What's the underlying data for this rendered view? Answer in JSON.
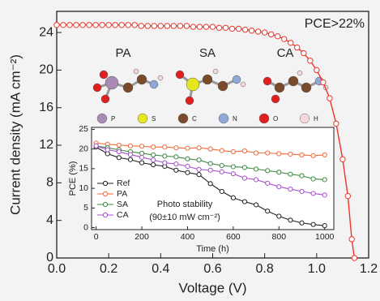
{
  "chart_data": [
    {
      "type": "line",
      "xlabel": "Voltage (V)",
      "ylabel": "Current density (mA cm⁻²)",
      "annotation": "PCE>22%",
      "x": [
        0,
        0.025,
        0.05,
        0.075,
        0.1,
        0.125,
        0.15,
        0.175,
        0.2,
        0.225,
        0.25,
        0.275,
        0.3,
        0.325,
        0.35,
        0.375,
        0.4,
        0.425,
        0.45,
        0.475,
        0.5,
        0.525,
        0.55,
        0.575,
        0.6,
        0.625,
        0.65,
        0.675,
        0.7,
        0.725,
        0.75,
        0.775,
        0.8,
        0.825,
        0.85,
        0.875,
        0.9,
        0.925,
        0.95,
        0.975,
        1.0,
        1.025,
        1.05,
        1.075,
        1.1,
        1.12,
        1.135,
        1.145
      ],
      "values": [
        24.8,
        24.8,
        24.8,
        24.8,
        24.8,
        24.8,
        24.8,
        24.8,
        24.8,
        24.8,
        24.8,
        24.8,
        24.8,
        24.7,
        24.7,
        24.7,
        24.7,
        24.7,
        24.7,
        24.7,
        24.7,
        24.6,
        24.6,
        24.6,
        24.6,
        24.5,
        24.5,
        24.4,
        24.4,
        24.3,
        24.2,
        24.1,
        24.0,
        23.8,
        23.6,
        23.3,
        22.9,
        22.4,
        21.8,
        21.0,
        20.0,
        18.7,
        17.0,
        14.3,
        10.5,
        6.6,
        2.0,
        0
      ],
      "color": "#f0342a",
      "xlim": [
        0,
        1.2
      ],
      "ylim": [
        0,
        26.25
      ],
      "xticks": [
        {
          "value": 0,
          "label": "0.0"
        },
        0.2,
        0.4,
        0.6,
        0.8,
        {
          "value": 1,
          "label": "1.0"
        },
        1.2
      ],
      "yticks": [
        0,
        4,
        8,
        12,
        16,
        20,
        24
      ],
      "molecules": [
        "PA",
        "SA",
        "CA"
      ],
      "atoms": [
        {
          "symbol": "P",
          "color": "#a98bb5"
        },
        {
          "symbol": "S",
          "color": "#e6e61e"
        },
        {
          "symbol": "C",
          "color": "#7a4a2a"
        },
        {
          "symbol": "N",
          "color": "#8fa8d8"
        },
        {
          "symbol": "O",
          "color": "#e02020"
        },
        {
          "symbol": "H",
          "color": "#f2d8dc"
        }
      ]
    },
    {
      "type": "line",
      "xlabel": "Time (h)",
      "ylabel": "PCE (%)",
      "annotation": [
        "Photo stability",
        "(90±10 mW cm⁻²)"
      ],
      "x": [
        0,
        50,
        100,
        150,
        200,
        250,
        300,
        350,
        400,
        450,
        500,
        550,
        600,
        650,
        700,
        750,
        800,
        850,
        900,
        950,
        1000
      ],
      "series": [
        {
          "name": "Ref",
          "color": "#222222",
          "values": [
            20.5,
            18.8,
            17.8,
            17.3,
            16.5,
            16.0,
            15.6,
            14.6,
            14.0,
            13.5,
            11.2,
            9.2,
            7.6,
            6.6,
            5.8,
            4.2,
            2.9,
            1.9,
            1.2,
            0.8,
            0.5
          ]
        },
        {
          "name": "PA",
          "color": "#f26a3c",
          "values": [
            21.5,
            21.2,
            21.0,
            20.8,
            20.7,
            20.5,
            20.5,
            20.3,
            20.2,
            20.3,
            20.0,
            19.6,
            19.3,
            19.5,
            19.0,
            19.0,
            18.8,
            18.7,
            18.5,
            18.3,
            18.5
          ]
        },
        {
          "name": "SA",
          "color": "#3d8b45",
          "values": [
            20.8,
            20.3,
            19.8,
            19.3,
            18.9,
            18.5,
            18.2,
            18.0,
            17.5,
            17.2,
            16.3,
            15.8,
            15.5,
            15.3,
            14.9,
            14.5,
            14.1,
            13.6,
            13.2,
            12.4,
            12.2
          ]
        },
        {
          "name": "CA",
          "color": "#a552cc",
          "values": [
            20.8,
            19.8,
            19.3,
            18.6,
            17.9,
            17.2,
            16.5,
            16.2,
            15.6,
            14.8,
            14.6,
            14.2,
            13.7,
            12.6,
            12.2,
            11.3,
            10.4,
            9.8,
            9.2,
            8.7,
            8.3
          ]
        }
      ],
      "xlim": [
        -20,
        1040
      ],
      "ylim": [
        -0.5,
        25.5
      ],
      "xticks": [
        0,
        200,
        400,
        600,
        800,
        1000
      ],
      "yticks": [
        0,
        5,
        10,
        15,
        20,
        25
      ]
    }
  ]
}
